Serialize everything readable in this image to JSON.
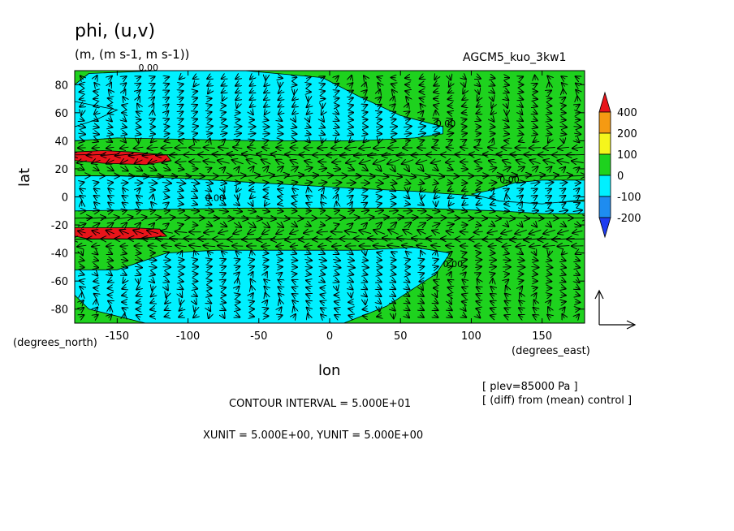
{
  "header": {
    "title": "phi, (u,v)",
    "units": "(m, (m s-1, m s-1))",
    "run_name": "AGCM5_kuo_3kw1"
  },
  "footer": {
    "contour_interval": "CONTOUR INTERVAL = 5.000E+01",
    "vector_units": "XUNIT = 5.000E+00, YUNIT = 5.000E+00",
    "level": "[ plev=85000 Pa ]",
    "comparison": "[ (diff) from (mean) control ]"
  },
  "chart_data": {
    "type": "heatmap",
    "title": "phi, (u,v)",
    "xlabel": "lon",
    "ylabel": "lat",
    "x_units": "(degrees_east)",
    "y_units": "(degrees_north)",
    "xlim": [
      -180,
      180
    ],
    "ylim": [
      -90,
      90
    ],
    "x_ticks": [
      -150,
      -100,
      -50,
      0,
      50,
      100,
      150
    ],
    "x_tick_labels": [
      "-150",
      "-100",
      "-50",
      "0",
      "50",
      "100",
      "150"
    ],
    "y_ticks": [
      80,
      60,
      40,
      20,
      0,
      -20,
      -40,
      -60,
      -80
    ],
    "y_tick_labels": [
      "80",
      "60",
      "40",
      "20",
      "0",
      "-20",
      "-40",
      "-60",
      "-80"
    ],
    "colorbar": {
      "levels": [
        400,
        200,
        100,
        0,
        -100,
        -200
      ],
      "labels": [
        "400",
        "200",
        "100",
        "0",
        "-100",
        "-200"
      ],
      "colors": [
        "#e8141a",
        "#f59a12",
        "#f5f51c",
        "#1ed21e",
        "#00f0ff",
        "#1e8cf0",
        "#1e3cf0"
      ]
    },
    "regions": [
      {
        "name": "negative-north",
        "fill": "#00f0ff",
        "polygon": [
          [
            -180,
            80
          ],
          [
            -170,
            88
          ],
          [
            -120,
            90
          ],
          [
            -60,
            90
          ],
          [
            -5,
            85
          ],
          [
            20,
            72
          ],
          [
            50,
            58
          ],
          [
            80,
            50
          ],
          [
            80,
            45
          ],
          [
            60,
            42
          ],
          [
            20,
            40
          ],
          [
            -50,
            40
          ],
          [
            -150,
            42
          ],
          [
            -180,
            40
          ]
        ]
      },
      {
        "name": "negative-north-west-lobe",
        "fill": "#00f0ff",
        "polygon": [
          [
            -180,
            50
          ],
          [
            -165,
            55
          ],
          [
            -150,
            62
          ],
          [
            -170,
            66
          ],
          [
            -180,
            68
          ]
        ]
      },
      {
        "name": "negative-tropics",
        "fill": "#00f0ff",
        "polygon": [
          [
            -180,
            15
          ],
          [
            -150,
            15
          ],
          [
            -100,
            13
          ],
          [
            -50,
            10
          ],
          [
            20,
            6
          ],
          [
            60,
            4
          ],
          [
            100,
            1
          ],
          [
            150,
            -4
          ],
          [
            180,
            -3
          ],
          [
            180,
            -12
          ],
          [
            150,
            -12
          ],
          [
            120,
            -10
          ],
          [
            60,
            -8
          ],
          [
            0,
            -8
          ],
          [
            -60,
            -8
          ],
          [
            -180,
            -10
          ]
        ]
      },
      {
        "name": "negative-south",
        "fill": "#00f0ff",
        "polygon": [
          [
            -180,
            -52
          ],
          [
            -150,
            -52
          ],
          [
            -115,
            -40
          ],
          [
            -80,
            -38
          ],
          [
            -30,
            -38
          ],
          [
            20,
            -38
          ],
          [
            60,
            -36
          ],
          [
            85,
            -40
          ],
          [
            75,
            -55
          ],
          [
            40,
            -78
          ],
          [
            10,
            -90
          ],
          [
            -130,
            -90
          ],
          [
            -170,
            -80
          ],
          [
            -180,
            -70
          ]
        ]
      },
      {
        "name": "negative-east-band",
        "fill": "#00f0ff",
        "polygon": [
          [
            100,
            2
          ],
          [
            115,
            5
          ],
          [
            130,
            10
          ],
          [
            150,
            12
          ],
          [
            180,
            12
          ],
          [
            180,
            -2
          ],
          [
            150,
            -5
          ],
          [
            120,
            -3
          ]
        ]
      },
      {
        "name": "positive-north-subtropics",
        "fill": "#e8141a",
        "polygon": [
          [
            -180,
            32
          ],
          [
            -160,
            33
          ],
          [
            -140,
            32
          ],
          [
            -115,
            30
          ],
          [
            -112,
            26
          ],
          [
            -130,
            23
          ],
          [
            -160,
            24
          ],
          [
            -180,
            26
          ]
        ]
      },
      {
        "name": "positive-south-subtropics",
        "fill": "#e8141a",
        "polygon": [
          [
            -180,
            -22
          ],
          [
            -160,
            -22
          ],
          [
            -140,
            -22
          ],
          [
            -120,
            -23
          ],
          [
            -115,
            -28
          ],
          [
            -140,
            -30
          ],
          [
            -170,
            -30
          ],
          [
            -180,
            -28
          ]
        ]
      }
    ],
    "contour_labels": [
      {
        "lon": -135,
        "lat": 90,
        "text": "0.00"
      },
      {
        "lon": 75,
        "lat": 50,
        "text": "0.00"
      },
      {
        "lon": 120,
        "lat": 10,
        "text": "0.00"
      },
      {
        "lon": -88,
        "lat": -3,
        "text": "0.00"
      },
      {
        "lon": 80,
        "lat": -50,
        "text": "0.00"
      }
    ],
    "vector_field": {
      "grid_lon_step": 10,
      "grid_lat_step": 5,
      "reference_vector": {
        "u": 5,
        "v": 5
      },
      "pattern": "strong westward flow near 30N and 30S, strong eastward flow near 15N and 15S, weak flow elsewhere"
    }
  }
}
